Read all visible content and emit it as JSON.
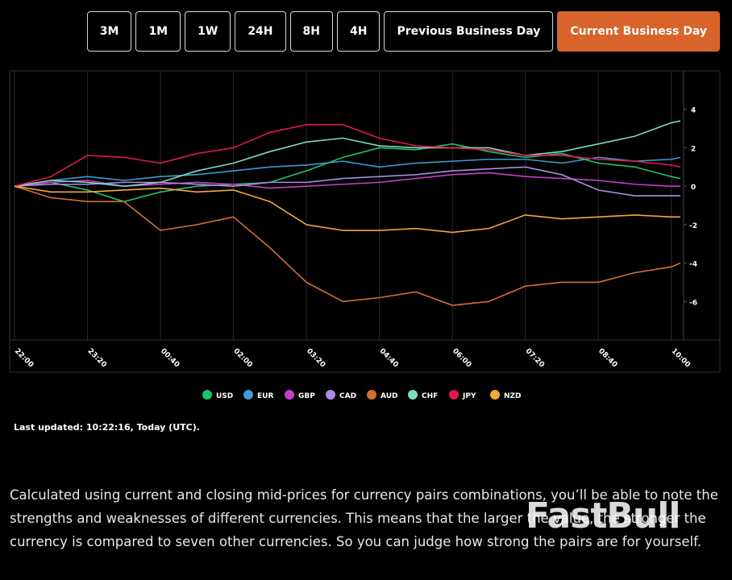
{
  "range_buttons": [
    "3M",
    "1M",
    "1W",
    "24H",
    "8H",
    "4H",
    "Previous Business Day",
    "Current Business Day"
  ],
  "active_range": "Current Business Day",
  "chart_data": {
    "type": "line",
    "x": [
      "22:00",
      "22:40",
      "23:20",
      "00:00",
      "00:40",
      "01:20",
      "02:00",
      "02:40",
      "03:20",
      "04:00",
      "04:40",
      "05:20",
      "06:00",
      "06:40",
      "07:20",
      "08:00",
      "08:40",
      "09:20",
      "10:00",
      "10:10"
    ],
    "xticks": [
      "22:00",
      "23:20",
      "00:40",
      "02:00",
      "03:20",
      "04:40",
      "06:00",
      "07:20",
      "08:40",
      "10:00"
    ],
    "ylim": [
      -8,
      6
    ],
    "yticks": [
      -6,
      -4,
      -2,
      0,
      2,
      4
    ],
    "grid": true,
    "series": [
      {
        "name": "USD",
        "color": "#1fc26b",
        "values": [
          0,
          0.2,
          -0.2,
          -0.8,
          -0.3,
          0,
          0.1,
          0.2,
          0.8,
          1.5,
          2.0,
          1.9,
          2.2,
          1.8,
          1.5,
          1.7,
          1.2,
          1.0,
          0.5,
          0.4
        ]
      },
      {
        "name": "EUR",
        "color": "#3d9bd6",
        "values": [
          0,
          0.3,
          0.5,
          0.3,
          0.5,
          0.6,
          0.8,
          1.0,
          1.1,
          1.3,
          1.0,
          1.2,
          1.3,
          1.4,
          1.4,
          1.2,
          1.5,
          1.3,
          1.4,
          1.5
        ]
      },
      {
        "name": "GBP",
        "color": "#c43fc9",
        "values": [
          0,
          0.2,
          0.3,
          0,
          0.1,
          0.2,
          0.1,
          -0.1,
          0,
          0.1,
          0.2,
          0.4,
          0.6,
          0.7,
          0.5,
          0.4,
          0.3,
          0.1,
          0,
          0
        ]
      },
      {
        "name": "CAD",
        "color": "#a98ee0",
        "values": [
          0,
          0.1,
          0.1,
          0.2,
          0.2,
          0.1,
          0,
          0.2,
          0.2,
          0.4,
          0.5,
          0.6,
          0.8,
          0.9,
          1.0,
          0.6,
          -0.2,
          -0.5,
          -0.5,
          -0.5
        ]
      },
      {
        "name": "AUD",
        "color": "#d86c34",
        "values": [
          0,
          -0.6,
          -0.8,
          -0.8,
          -2.3,
          -2.0,
          -1.6,
          -3.2,
          -5.0,
          -6.0,
          -5.8,
          -5.5,
          -6.2,
          -6.0,
          -5.2,
          -5.0,
          -5.0,
          -4.5,
          -4.2,
          -4.0
        ]
      },
      {
        "name": "CHF",
        "color": "#7fd9c0",
        "values": [
          0,
          0.3,
          0.2,
          0,
          0.2,
          0.8,
          1.2,
          1.8,
          2.3,
          2.5,
          2.1,
          2.0,
          2.0,
          2.0,
          1.6,
          1.8,
          2.2,
          2.6,
          3.3,
          3.4
        ]
      },
      {
        "name": "JPY",
        "color": "#e0184e",
        "values": [
          0,
          0.5,
          1.6,
          1.5,
          1.2,
          1.7,
          2.0,
          2.8,
          3.2,
          3.2,
          2.5,
          2.1,
          2.0,
          1.9,
          1.6,
          1.6,
          1.4,
          1.3,
          1.1,
          1.0
        ]
      },
      {
        "name": "NZD",
        "color": "#f4a83a",
        "values": [
          0,
          -0.3,
          -0.3,
          -0.2,
          -0.1,
          -0.3,
          -0.2,
          -0.8,
          -2.0,
          -2.3,
          -2.3,
          -2.2,
          -2.4,
          -2.2,
          -1.5,
          -1.7,
          -1.6,
          -1.5,
          -1.6,
          -1.6
        ]
      }
    ]
  },
  "last_updated": "Last updated: 10:22:16, Today (UTC).",
  "description": "Calculated using current and closing mid-prices for currency pairs combinations, you’ll be able to note the strengths and weaknesses of different currencies. This means that the larger the value, the stronger the currency is compared to seven other currencies. So you can judge how strong the pairs are for yourself.",
  "watermark": "FastBull"
}
